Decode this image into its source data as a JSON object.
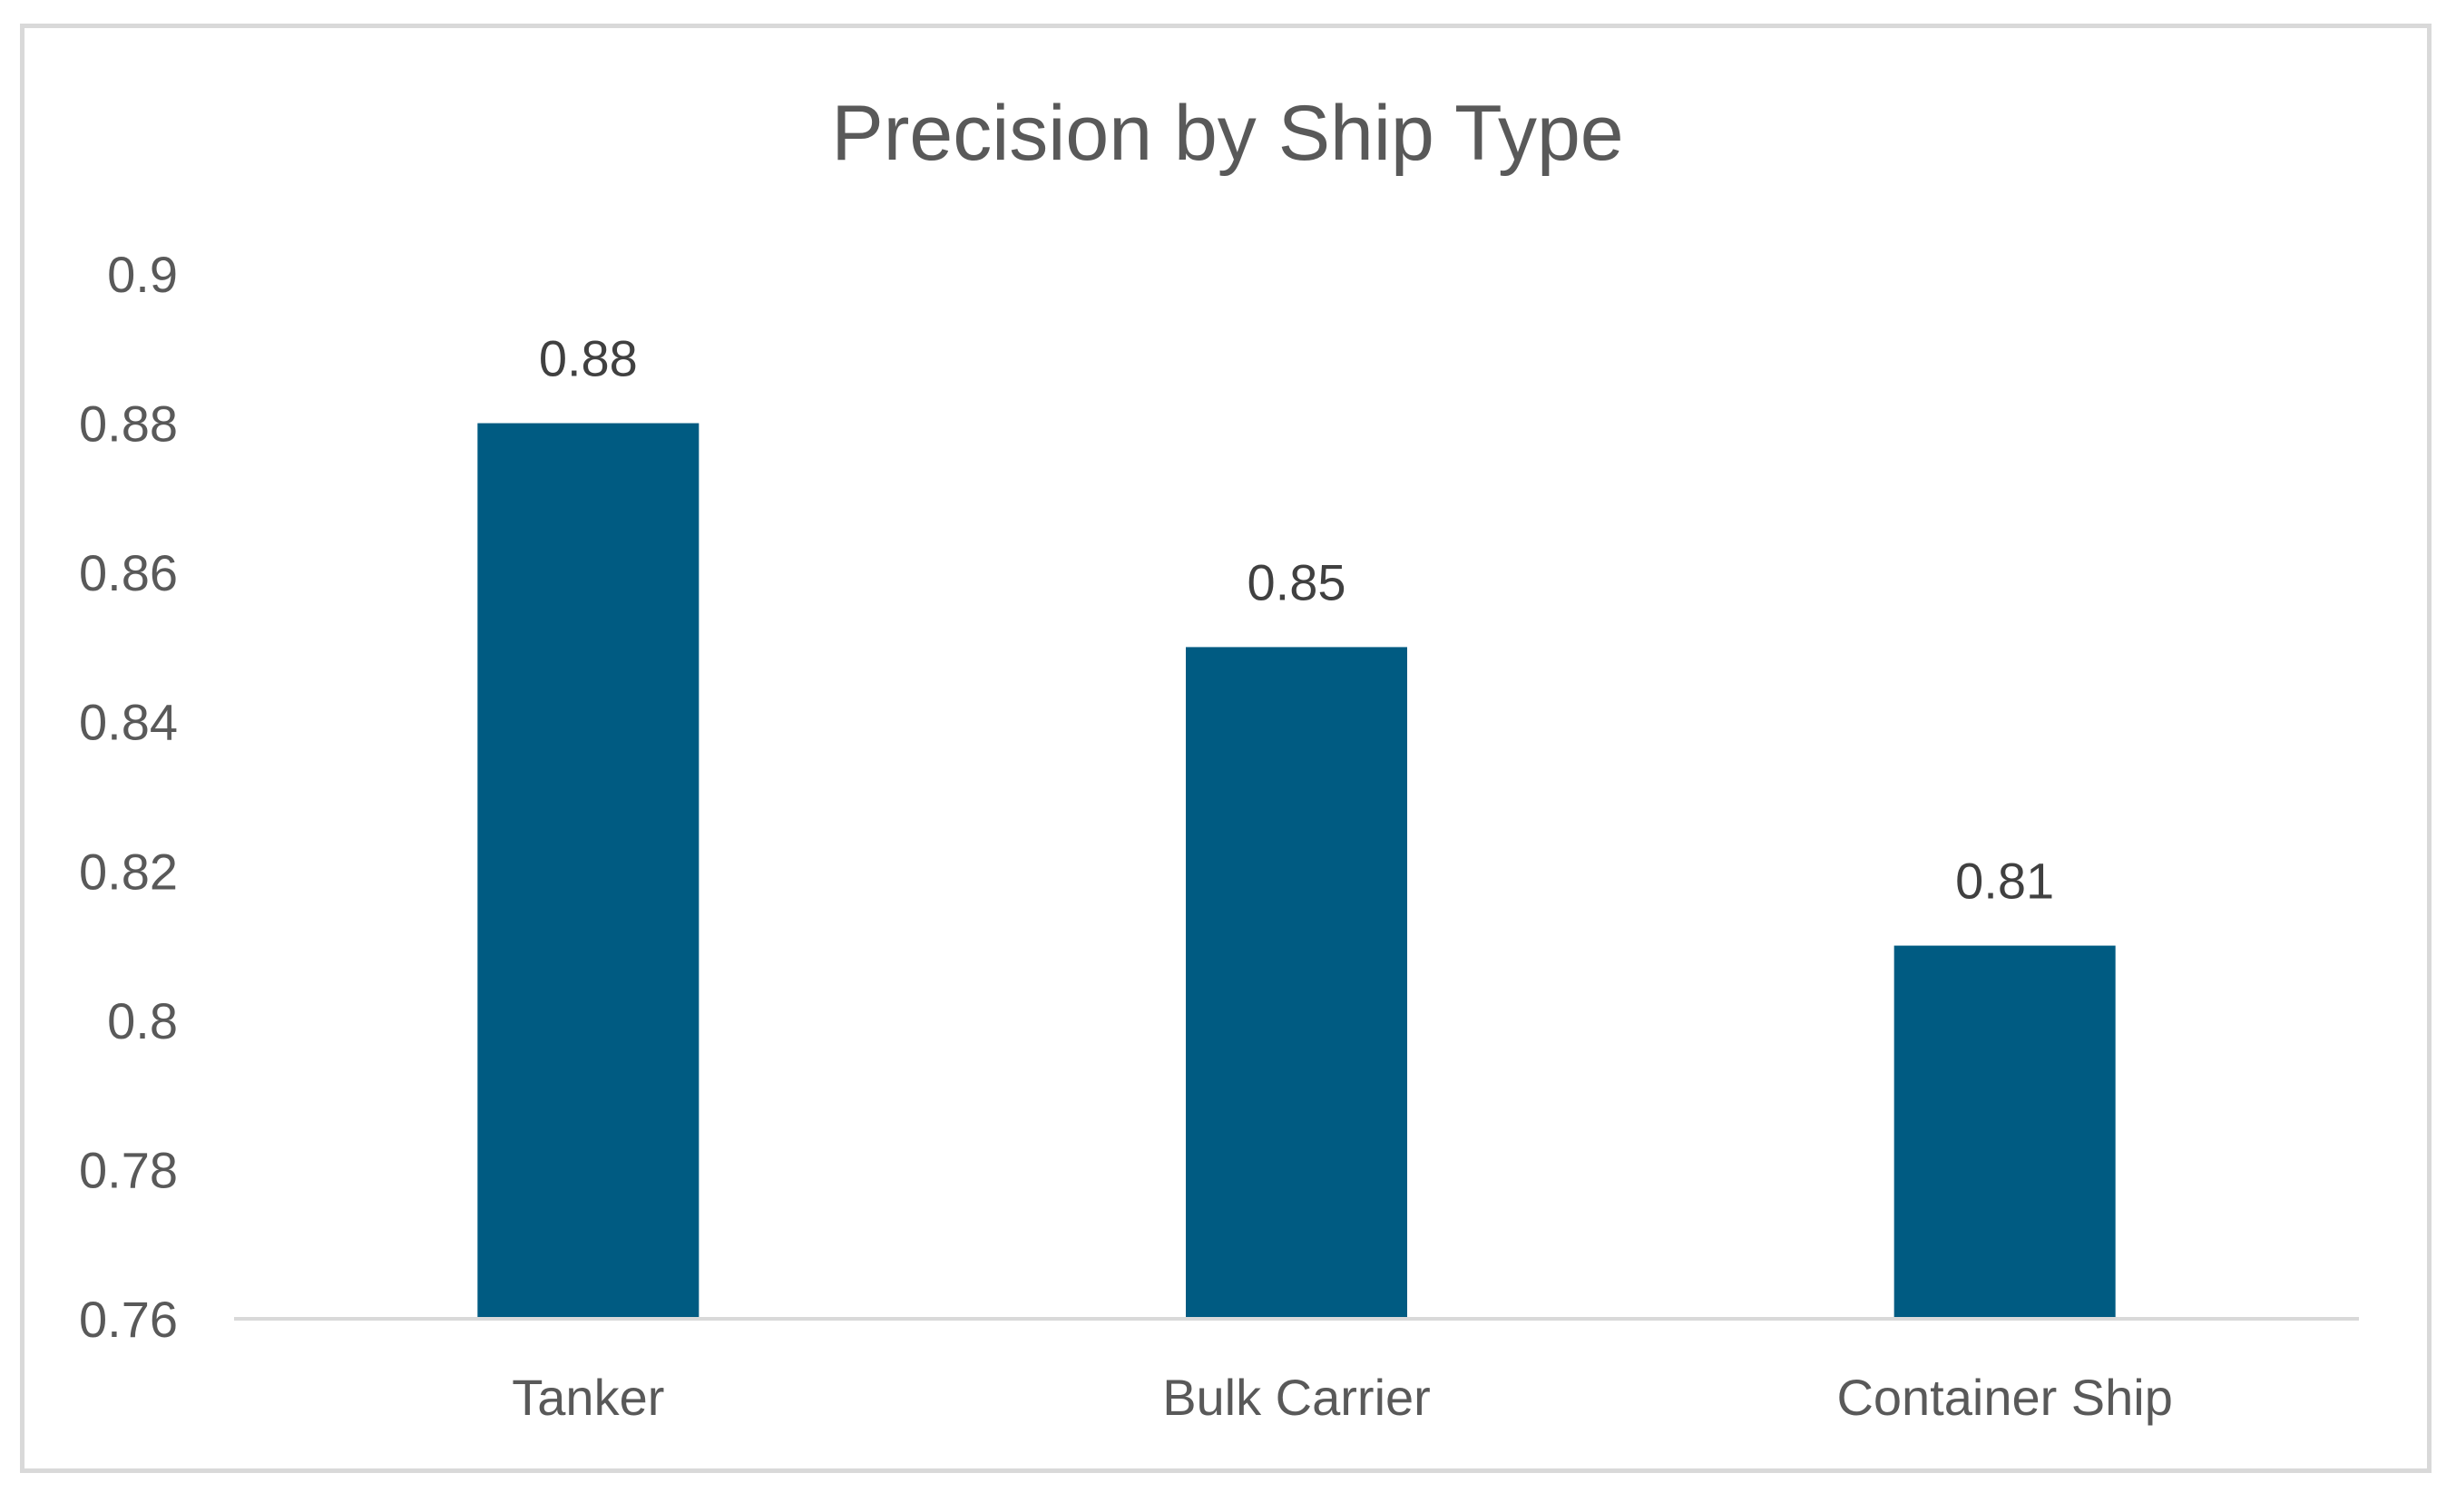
{
  "chart_data": {
    "type": "bar",
    "title": "Precision by Ship Type",
    "xlabel": "",
    "ylabel": "",
    "categories": [
      "Tanker",
      "Bulk Carrier",
      "Container Ship"
    ],
    "values": [
      0.88,
      0.85,
      0.81
    ],
    "data_labels": [
      "0.88",
      "0.85",
      "0.81"
    ],
    "ylim": [
      0.76,
      0.9
    ],
    "y_ticks": [
      0.76,
      0.78,
      0.8,
      0.82,
      0.84,
      0.86,
      0.88,
      0.9
    ],
    "y_tick_labels": [
      "0.76",
      "0.78",
      "0.8",
      "0.82",
      "0.84",
      "0.86",
      "0.88",
      "0.9"
    ],
    "grid": false,
    "legend": "none",
    "colors": {
      "bar": "#005b82",
      "axis": "#d9d9d9",
      "text": "#595959",
      "data_label": "#404040"
    }
  }
}
